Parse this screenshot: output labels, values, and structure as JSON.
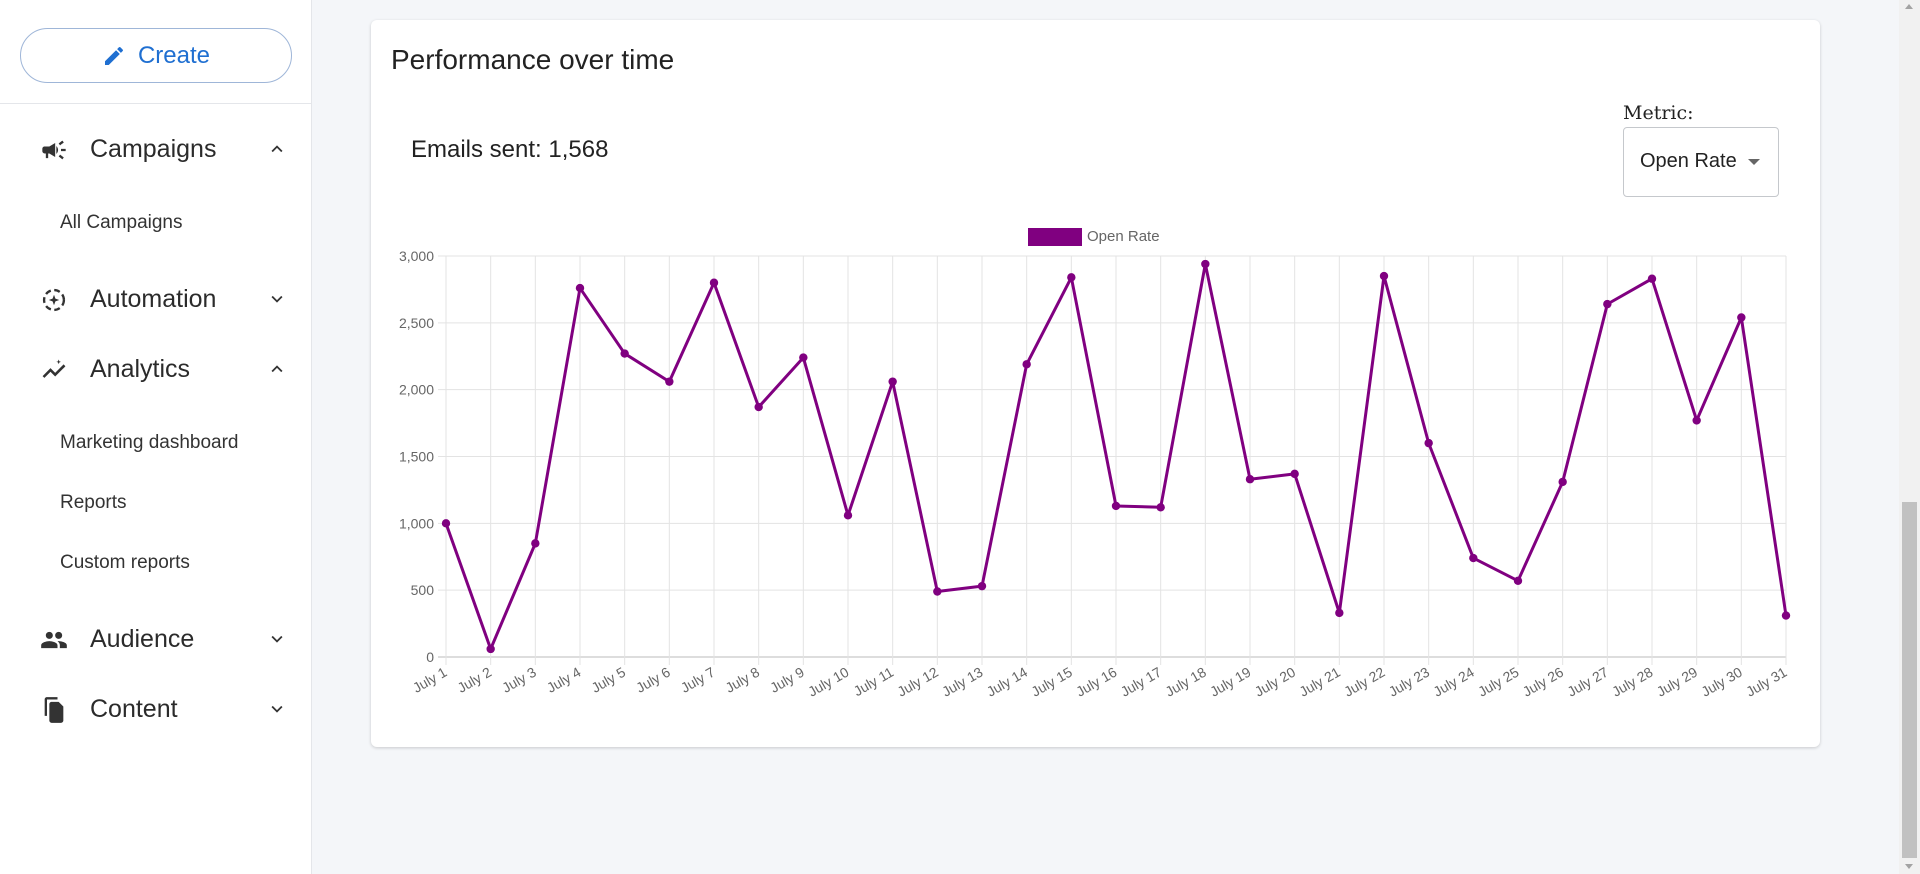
{
  "sidebar": {
    "create_label": "Create",
    "sections": [
      {
        "label": "Campaigns",
        "icon": "megaphone-icon",
        "expanded": true,
        "items": [
          "All Campaigns"
        ]
      },
      {
        "label": "Automation",
        "icon": "automation-icon",
        "expanded": false,
        "items": []
      },
      {
        "label": "Analytics",
        "icon": "analytics-icon",
        "expanded": true,
        "items": [
          "Marketing dashboard",
          "Reports",
          "Custom reports"
        ]
      },
      {
        "label": "Audience",
        "icon": "people-icon",
        "expanded": false,
        "items": []
      },
      {
        "label": "Content",
        "icon": "content-icon",
        "expanded": false,
        "items": []
      }
    ]
  },
  "main": {
    "card_title": "Performance over time",
    "emails_sent": "Emails sent: 1,568",
    "metric_label": "Metric:",
    "metric_value": "Open Rate"
  },
  "colors": {
    "accent": "#1f6fd1",
    "series": "#800080"
  },
  "chart_data": {
    "type": "line",
    "title": "",
    "xlabel": "",
    "ylabel": "",
    "ylim": [
      0,
      3000
    ],
    "yticks": [
      0,
      500,
      1000,
      1500,
      2000,
      2500,
      3000
    ],
    "ytick_labels": [
      "0",
      "500",
      "1,000",
      "1,500",
      "2,000",
      "2,500",
      "3,000"
    ],
    "legend": "top-center",
    "grid": true,
    "categories": [
      "July 1",
      "July 2",
      "July 3",
      "July 4",
      "July 5",
      "July 6",
      "July 7",
      "July 8",
      "July 9",
      "July 10",
      "July 11",
      "July 12",
      "July 13",
      "July 14",
      "July 15",
      "July 16",
      "July 17",
      "July 18",
      "July 19",
      "July 20",
      "July 21",
      "July 22",
      "July 23",
      "July 24",
      "July 25",
      "July 26",
      "July 27",
      "July 28",
      "July 29",
      "July 30",
      "July 31"
    ],
    "series": [
      {
        "name": "Open Rate",
        "color": "#800080",
        "values": [
          1000,
          60,
          850,
          2760,
          2270,
          2060,
          2800,
          1870,
          2240,
          1060,
          2060,
          490,
          530,
          2190,
          2840,
          1130,
          1120,
          2940,
          1330,
          1370,
          330,
          2850,
          1600,
          740,
          570,
          1310,
          2640,
          2830,
          1770,
          2540,
          310
        ]
      }
    ]
  }
}
